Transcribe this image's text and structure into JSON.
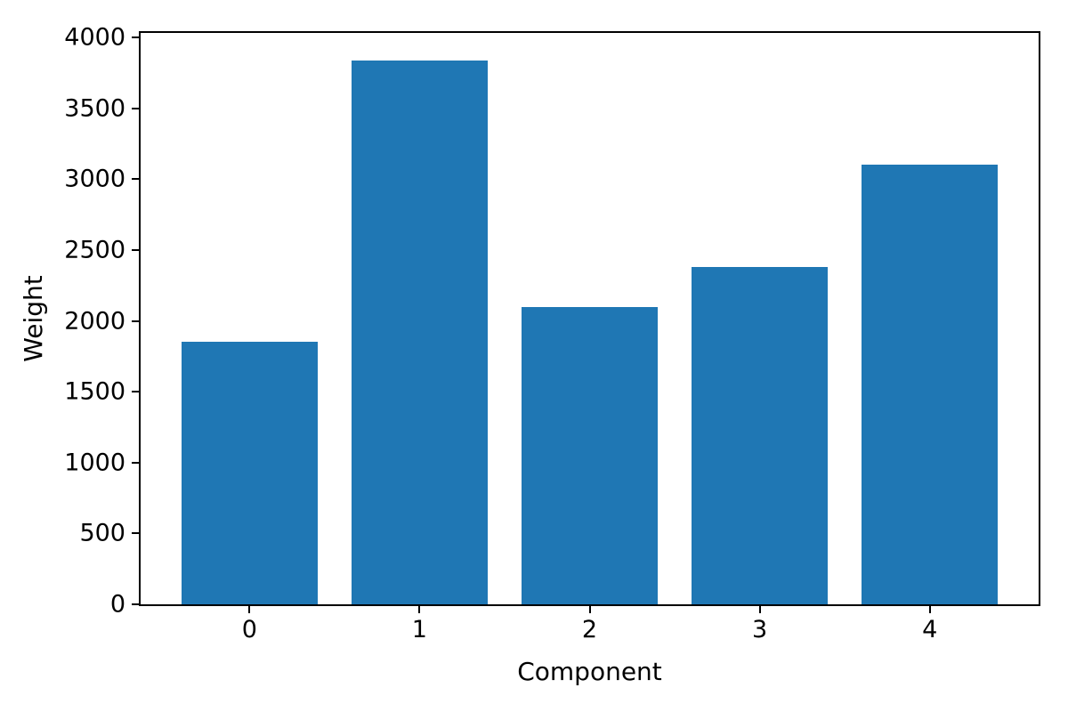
{
  "figure": {
    "background_color": "#ffffff",
    "text_color": "#000000",
    "axis_color": "#000000"
  },
  "chart_data": {
    "type": "bar",
    "title": "",
    "xlabel": "Component",
    "ylabel": "Weight",
    "categories": [
      "0",
      "1",
      "2",
      "3",
      "4"
    ],
    "values": [
      1855,
      3840,
      2100,
      2380,
      3100
    ],
    "bar_color": "#1f77b4",
    "bar_width": 0.8,
    "xlim": [
      -0.64,
      4.64
    ],
    "ylim": [
      0,
      4032
    ],
    "y_ticks": [
      0,
      500,
      1000,
      1500,
      2000,
      2500,
      3000,
      3500,
      4000
    ],
    "grid": false,
    "legend": "none"
  }
}
